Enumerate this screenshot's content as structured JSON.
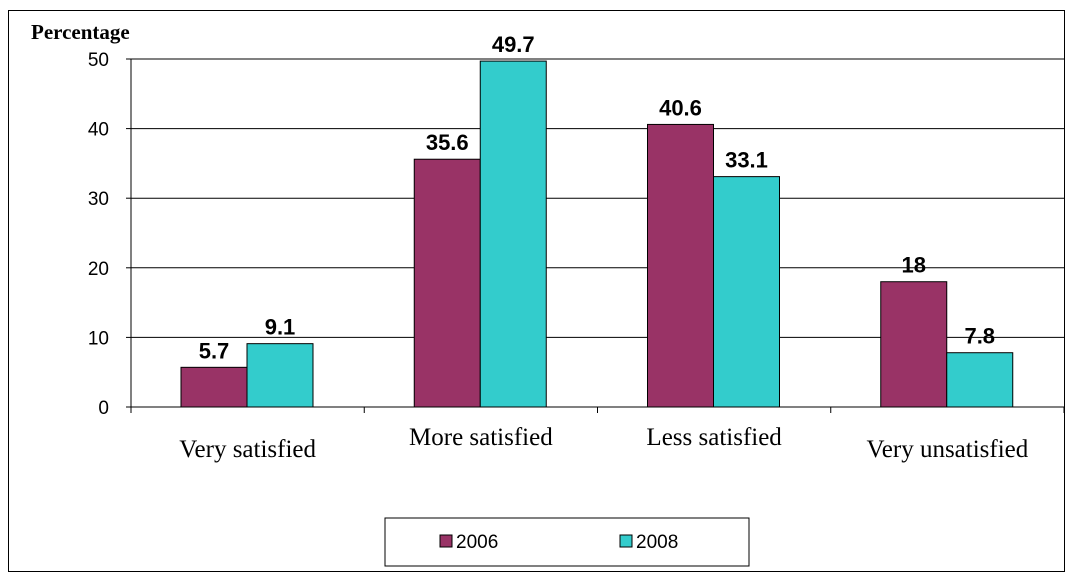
{
  "chart_data": {
    "type": "bar",
    "ylabel": "Percentage",
    "ylim": [
      0,
      50
    ],
    "yticks": [
      0,
      10,
      20,
      30,
      40,
      50
    ],
    "categories": [
      "Very satisfied",
      "More satisfied",
      "Less satisfied",
      "Very unsatisfied"
    ],
    "series": [
      {
        "name": "2006",
        "values": [
          5.7,
          35.6,
          40.6,
          18
        ],
        "labels": [
          "5.7",
          "35.6",
          "40.6",
          "18"
        ],
        "color": "#993366"
      },
      {
        "name": "2008",
        "values": [
          9.1,
          49.7,
          33.1,
          7.8
        ],
        "labels": [
          "9.1",
          "49.7",
          "33.1",
          "7.8"
        ],
        "color": "#33CCCC"
      }
    ],
    "grid": true,
    "legend": "bottom"
  }
}
